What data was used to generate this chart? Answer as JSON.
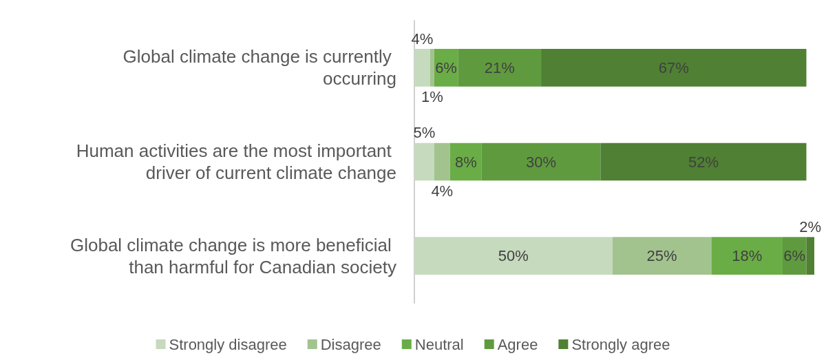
{
  "chart_data": {
    "type": "bar",
    "orientation": "horizontal",
    "stacked": true,
    "legend": "bottom",
    "grid": false,
    "tick_labels": "y",
    "categories": [
      "Global climate change is currently occurring",
      "Human activities are the most important driver of current climate change",
      "Global climate change is more beneficial than harmful for Canadian society"
    ],
    "series": [
      {
        "name": "Strongly disagree",
        "color": "#c6dabe",
        "values": [
          4,
          5,
          50
        ],
        "value_labels": [
          "4%",
          "5%",
          "50%"
        ]
      },
      {
        "name": "Disagree",
        "color": "#a2c38e",
        "values": [
          1,
          4,
          25
        ],
        "value_labels": [
          "1%",
          "4%",
          "25%"
        ]
      },
      {
        "name": "Neutral",
        "color": "#6aad46",
        "values": [
          6,
          8,
          18
        ],
        "value_labels": [
          "6%",
          "8%",
          "18%"
        ]
      },
      {
        "name": "Agree",
        "color": "#5f9b3e",
        "values": [
          21,
          30,
          6
        ],
        "value_labels": [
          "21%",
          "30%",
          "6%"
        ]
      },
      {
        "name": "Strongly agree",
        "color": "#4f8033",
        "values": [
          67,
          52,
          2
        ],
        "value_labels": [
          "67%",
          "52%",
          "2%"
        ]
      }
    ]
  }
}
